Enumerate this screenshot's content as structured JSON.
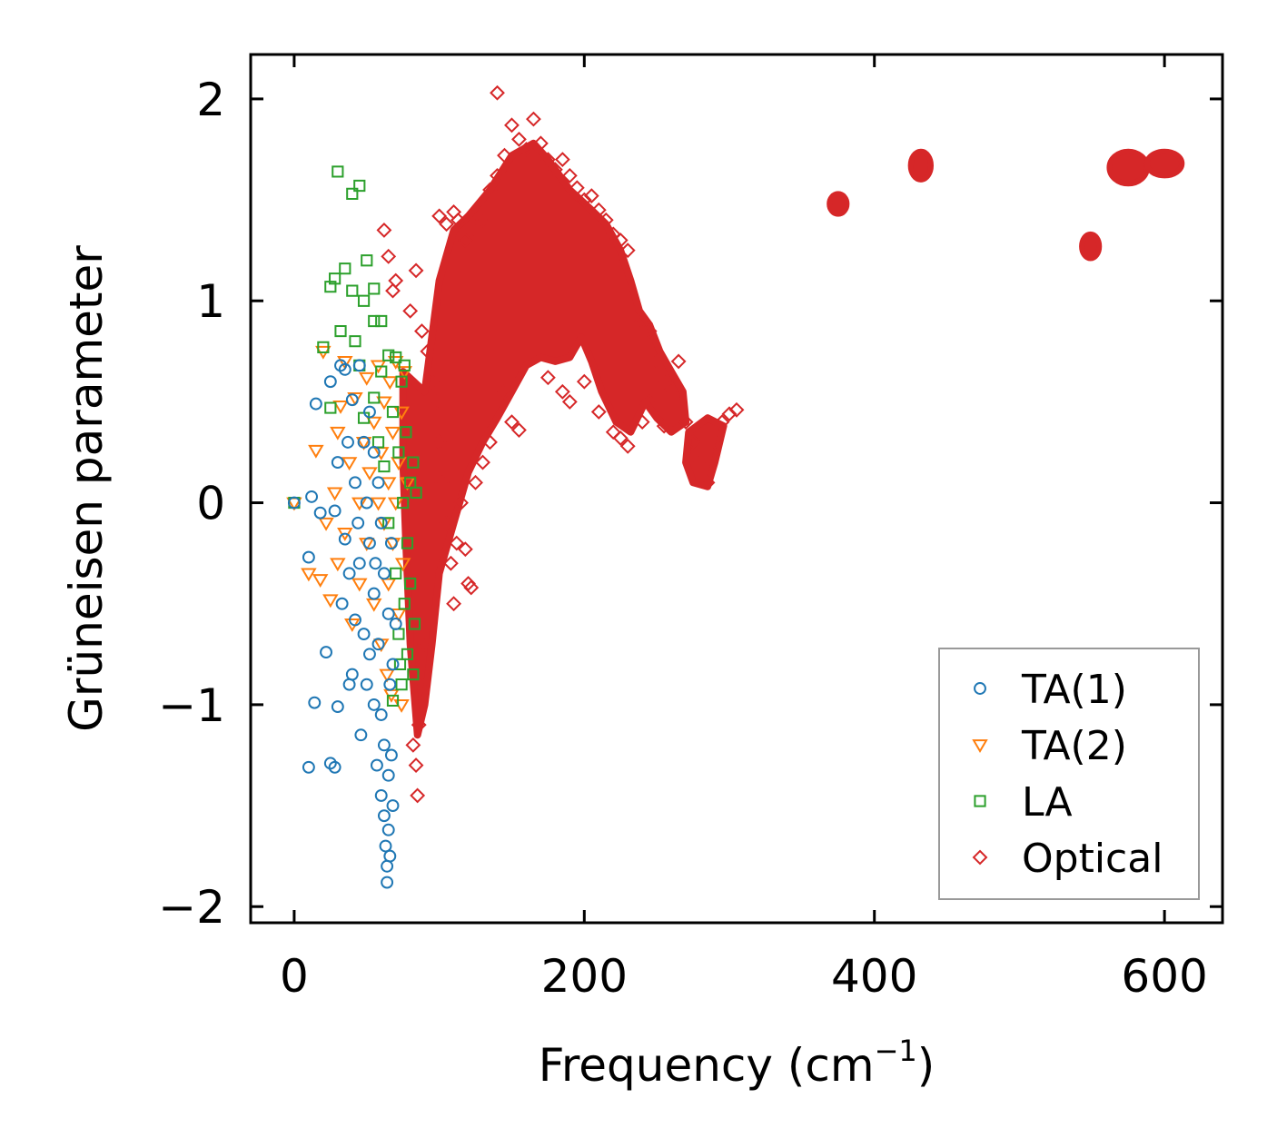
{
  "chart_data": {
    "type": "scatter",
    "title": "",
    "xlabel": "Frequency (cm",
    "xlabel_sup": "−1",
    "xlabel_end": ")",
    "ylabel": "Grüneisen parameter",
    "xlim": [
      -30,
      640
    ],
    "ylim": [
      -2.08,
      2.22
    ],
    "xticks": [
      0,
      200,
      400,
      600
    ],
    "xtick_labels": [
      "0",
      "200",
      "400",
      "600"
    ],
    "yticks": [
      -2,
      -1,
      0,
      1,
      2
    ],
    "ytick_labels": [
      "−2",
      "−1",
      "0",
      "1",
      "2"
    ],
    "legend_position": "lower-right",
    "series": [
      {
        "name": "TA(1)",
        "marker": "circle",
        "color": "#1f77b4",
        "points": [
          [
            0,
            0
          ],
          [
            12,
            0.03
          ],
          [
            15,
            0.49
          ],
          [
            18,
            -0.05
          ],
          [
            10,
            -0.27
          ],
          [
            14,
            -0.99
          ],
          [
            10,
            -1.31
          ],
          [
            22,
            -0.74
          ],
          [
            25,
            -1.29
          ],
          [
            28,
            -1.31
          ],
          [
            25,
            0.6
          ],
          [
            28,
            -0.04
          ],
          [
            30,
            0.2
          ],
          [
            30,
            -1.01
          ],
          [
            32,
            0.68
          ],
          [
            33,
            -0.5
          ],
          [
            35,
            0.66
          ],
          [
            35,
            -0.18
          ],
          [
            37,
            0.3
          ],
          [
            38,
            -0.35
          ],
          [
            40,
            0.51
          ],
          [
            40,
            -0.85
          ],
          [
            42,
            0.1
          ],
          [
            42,
            -0.58
          ],
          [
            45,
            0.68
          ],
          [
            45,
            -0.3
          ],
          [
            48,
            0.3
          ],
          [
            48,
            -0.65
          ],
          [
            50,
            0.0
          ],
          [
            50,
            -0.9
          ],
          [
            52,
            0.45
          ],
          [
            52,
            -0.2
          ],
          [
            55,
            0.25
          ],
          [
            55,
            -0.45
          ],
          [
            55,
            -1.0
          ],
          [
            57,
            -1.3
          ],
          [
            58,
            0.1
          ],
          [
            58,
            -0.7
          ],
          [
            60,
            -0.1
          ],
          [
            60,
            -1.05
          ],
          [
            60,
            -1.45
          ],
          [
            62,
            -0.35
          ],
          [
            62,
            -1.2
          ],
          [
            62,
            -1.55
          ],
          [
            63,
            -1.7
          ],
          [
            64,
            -1.8
          ],
          [
            64,
            -1.88
          ],
          [
            65,
            -0.55
          ],
          [
            65,
            -1.35
          ],
          [
            65,
            -1.62
          ],
          [
            66,
            -0.9
          ],
          [
            66,
            -1.75
          ],
          [
            67,
            -0.2
          ],
          [
            67,
            -1.25
          ],
          [
            68,
            -0.8
          ],
          [
            68,
            -1.5
          ],
          [
            70,
            -0.6
          ],
          [
            38,
            -0.9
          ],
          [
            44,
            -0.1
          ],
          [
            46,
            -1.15
          ],
          [
            52,
            -0.75
          ],
          [
            56,
            -0.3
          ]
        ]
      },
      {
        "name": "TA(2)",
        "marker": "triangle-down",
        "color": "#ff7f0e",
        "points": [
          [
            0,
            0
          ],
          [
            10,
            -0.35
          ],
          [
            15,
            0.26
          ],
          [
            18,
            -0.38
          ],
          [
            20,
            0.75
          ],
          [
            22,
            -0.1
          ],
          [
            25,
            -0.48
          ],
          [
            28,
            0.05
          ],
          [
            30,
            0.35
          ],
          [
            30,
            -0.3
          ],
          [
            32,
            0.48
          ],
          [
            35,
            -0.15
          ],
          [
            35,
            0.7
          ],
          [
            38,
            0.2
          ],
          [
            40,
            -0.6
          ],
          [
            42,
            0.52
          ],
          [
            45,
            0.0
          ],
          [
            45,
            -0.4
          ],
          [
            48,
            0.3
          ],
          [
            50,
            0.62
          ],
          [
            50,
            -0.2
          ],
          [
            52,
            0.15
          ],
          [
            55,
            -0.5
          ],
          [
            55,
            0.4
          ],
          [
            58,
            0.0
          ],
          [
            58,
            0.68
          ],
          [
            60,
            -0.7
          ],
          [
            60,
            0.25
          ],
          [
            62,
            -0.1
          ],
          [
            62,
            0.5
          ],
          [
            64,
            -0.85
          ],
          [
            65,
            0.1
          ],
          [
            65,
            -0.4
          ],
          [
            66,
            0.6
          ],
          [
            67,
            -0.95
          ],
          [
            68,
            0.35
          ],
          [
            68,
            -0.2
          ],
          [
            70,
            0.0
          ],
          [
            70,
            0.7
          ],
          [
            72,
            -0.55
          ],
          [
            72,
            0.2
          ],
          [
            74,
            -1.0
          ],
          [
            74,
            0.45
          ],
          [
            75,
            -0.3
          ],
          [
            76,
            0.65
          ],
          [
            78,
            0.1
          ]
        ]
      },
      {
        "name": "LA",
        "marker": "square",
        "color": "#2ca02c",
        "points": [
          [
            0,
            0
          ],
          [
            30,
            1.64
          ],
          [
            40,
            1.53
          ],
          [
            45,
            1.57
          ],
          [
            25,
            1.07
          ],
          [
            28,
            1.11
          ],
          [
            35,
            1.16
          ],
          [
            40,
            1.05
          ],
          [
            42,
            0.8
          ],
          [
            48,
            1.0
          ],
          [
            50,
            1.2
          ],
          [
            55,
            1.06
          ],
          [
            55,
            0.9
          ],
          [
            60,
            0.9
          ],
          [
            20,
            0.77
          ],
          [
            25,
            0.47
          ],
          [
            32,
            0.85
          ],
          [
            45,
            0.68
          ],
          [
            48,
            0.42
          ],
          [
            55,
            0.52
          ],
          [
            58,
            0.3
          ],
          [
            60,
            0.65
          ],
          [
            62,
            0.18
          ],
          [
            65,
            0.73
          ],
          [
            65,
            -0.1
          ],
          [
            68,
            0.45
          ],
          [
            70,
            -0.35
          ],
          [
            72,
            0.25
          ],
          [
            72,
            -0.65
          ],
          [
            74,
            0.6
          ],
          [
            74,
            -0.9
          ],
          [
            75,
            0.0
          ],
          [
            76,
            -0.5
          ],
          [
            77,
            0.35
          ],
          [
            78,
            -0.2
          ],
          [
            78,
            -0.75
          ],
          [
            80,
            0.1
          ],
          [
            80,
            -0.4
          ],
          [
            82,
            0.2
          ],
          [
            82,
            -0.85
          ],
          [
            83,
            -0.6
          ],
          [
            84,
            0.05
          ],
          [
            76,
            0.68
          ],
          [
            70,
            0.72
          ],
          [
            68,
            -0.98
          ],
          [
            73,
            -0.8
          ]
        ]
      },
      {
        "name": "Optical",
        "marker": "diamond",
        "color": "#d62728",
        "points": [
          [
            140,
            2.03
          ],
          [
            62,
            1.35
          ],
          [
            65,
            1.22
          ],
          [
            68,
            1.05
          ],
          [
            70,
            1.1
          ],
          [
            80,
            0.95
          ],
          [
            84,
            1.15
          ],
          [
            88,
            0.85
          ],
          [
            92,
            0.75
          ],
          [
            95,
            0.6
          ],
          [
            98,
            0.5
          ],
          [
            100,
            0.3
          ],
          [
            102,
            0.1
          ],
          [
            105,
            -0.1
          ],
          [
            108,
            -0.3
          ],
          [
            110,
            -0.5
          ],
          [
            112,
            -0.2
          ],
          [
            115,
            0.0
          ],
          [
            118,
            -0.23
          ],
          [
            120,
            -0.4
          ],
          [
            122,
            -0.42
          ],
          [
            90,
            -0.7
          ],
          [
            88,
            -0.9
          ],
          [
            86,
            -1.1
          ],
          [
            84,
            -1.3
          ],
          [
            85,
            -1.45
          ],
          [
            82,
            -1.2
          ],
          [
            100,
            1.42
          ],
          [
            105,
            1.38
          ],
          [
            110,
            1.44
          ],
          [
            113,
            1.4
          ],
          [
            118,
            1.3
          ],
          [
            125,
            1.35
          ],
          [
            130,
            1.4
          ],
          [
            135,
            1.55
          ],
          [
            140,
            1.62
          ],
          [
            145,
            1.72
          ],
          [
            150,
            1.87
          ],
          [
            155,
            1.8
          ],
          [
            160,
            1.75
          ],
          [
            165,
            1.9
          ],
          [
            170,
            1.78
          ],
          [
            175,
            1.7
          ],
          [
            180,
            1.65
          ],
          [
            185,
            1.7
          ],
          [
            190,
            1.62
          ],
          [
            195,
            1.56
          ],
          [
            200,
            1.5
          ],
          [
            205,
            1.52
          ],
          [
            210,
            1.45
          ],
          [
            215,
            1.4
          ],
          [
            220,
            1.33
          ],
          [
            225,
            1.3
          ],
          [
            230,
            1.25
          ],
          [
            240,
            0.9
          ],
          [
            245,
            0.85
          ],
          [
            250,
            0.7
          ],
          [
            255,
            0.6
          ],
          [
            260,
            0.55
          ],
          [
            265,
            0.7
          ],
          [
            270,
            0.4
          ],
          [
            275,
            0.3
          ],
          [
            280,
            0.2
          ],
          [
            285,
            0.1
          ],
          [
            290,
            0.3
          ],
          [
            295,
            0.4
          ],
          [
            300,
            0.44
          ],
          [
            305,
            0.46
          ],
          [
            175,
            0.62
          ],
          [
            185,
            0.55
          ],
          [
            190,
            0.5
          ],
          [
            200,
            0.6
          ],
          [
            210,
            0.45
          ],
          [
            220,
            0.35
          ],
          [
            225,
            0.32
          ],
          [
            230,
            0.28
          ],
          [
            240,
            0.4
          ],
          [
            245,
            0.5
          ],
          [
            255,
            0.38
          ],
          [
            145,
            0.55
          ],
          [
            150,
            0.4
          ],
          [
            155,
            0.36
          ],
          [
            135,
            0.3
          ],
          [
            130,
            0.2
          ],
          [
            125,
            0.1
          ]
        ],
        "bands": [
          {
            "path": [
              [
                75,
                0.65
              ],
              [
                90,
                0.55
              ],
              [
                100,
                1.1
              ],
              [
                110,
                1.35
              ],
              [
                120,
                1.42
              ],
              [
                135,
                1.55
              ],
              [
                150,
                1.72
              ],
              [
                165,
                1.78
              ],
              [
                175,
                1.7
              ],
              [
                190,
                1.55
              ],
              [
                205,
                1.45
              ],
              [
                215,
                1.38
              ],
              [
                225,
                1.25
              ],
              [
                232,
                1.1
              ],
              [
                238,
                0.95
              ],
              [
                245,
                0.88
              ],
              [
                252,
                0.75
              ],
              [
                260,
                0.65
              ],
              [
                268,
                0.55
              ],
              [
                270,
                0.4
              ],
              [
                260,
                0.35
              ],
              [
                250,
                0.42
              ],
              [
                242,
                0.5
              ],
              [
                232,
                0.35
              ],
              [
                222,
                0.4
              ],
              [
                212,
                0.55
              ],
              [
                205,
                0.7
              ],
              [
                198,
                0.82
              ],
              [
                190,
                0.72
              ],
              [
                180,
                0.7
              ],
              [
                170,
                0.72
              ],
              [
                160,
                0.68
              ],
              [
                150,
                0.55
              ],
              [
                140,
                0.42
              ],
              [
                130,
                0.3
              ],
              [
                120,
                0.15
              ],
              [
                110,
                -0.1
              ],
              [
                100,
                -0.35
              ],
              [
                95,
                -0.7
              ],
              [
                90,
                -1.0
              ],
              [
                85,
                -1.15
              ],
              [
                80,
                -0.7
              ],
              [
                77,
                -0.2
              ],
              [
                75,
                0.2
              ]
            ]
          },
          {
            "path": [
              [
                272,
                0.35
              ],
              [
                285,
                0.42
              ],
              [
                296,
                0.38
              ],
              [
                290,
                0.2
              ],
              [
                285,
                0.08
              ],
              [
                275,
                0.1
              ],
              [
                270,
                0.2
              ]
            ]
          }
        ],
        "clusters": [
          {
            "x": 375,
            "y": 1.48,
            "xr": 6,
            "yr": 0.05
          },
          {
            "x": 432,
            "y": 1.67,
            "xr": 7,
            "yr": 0.07
          },
          {
            "x": 549,
            "y": 1.27,
            "xr": 6,
            "yr": 0.06
          },
          {
            "x": 575,
            "y": 1.66,
            "xr": 13,
            "yr": 0.08
          },
          {
            "x": 600,
            "y": 1.68,
            "xr": 12,
            "yr": 0.06
          }
        ]
      }
    ]
  }
}
